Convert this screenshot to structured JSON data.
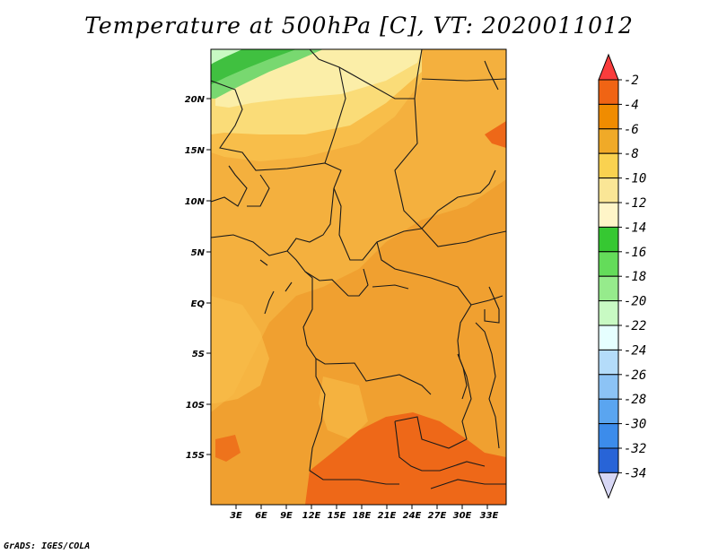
{
  "title": "Temperature at 500hPa [C], VT: 2020011012",
  "credit": "GrADS: IGES/COLA",
  "map": {
    "lon_labels": [
      "3E",
      "6E",
      "9E",
      "12E",
      "15E",
      "18E",
      "21E",
      "24E",
      "27E",
      "30E",
      "33E"
    ],
    "lat_labels": [
      "20N",
      "15N",
      "10N",
      "5N",
      "EQ",
      "5S",
      "10S",
      "15S"
    ]
  },
  "colorbar": {
    "labels": [
      "-2",
      "-4",
      "-6",
      "-8",
      "-10",
      "-12",
      "-14",
      "-16",
      "-18",
      "-20",
      "-22",
      "-24",
      "-26",
      "-28",
      "-30",
      "-32",
      "-34"
    ],
    "colors": [
      "#fa3c3c",
      "#f06414",
      "#f08c00",
      "#f0aa28",
      "#fad250",
      "#fae696",
      "#fff5c8",
      "#36c832",
      "#64dc5a",
      "#96eb8c",
      "#c8fac3",
      "#e6ffff",
      "#b4dcfa",
      "#8cc3f5",
      "#5aa5f0",
      "#3c8ceb",
      "#2864d7",
      "#1446b4",
      "#0a1e82",
      "#d7d7f5"
    ]
  },
  "palette": {
    "land": "#f0a030",
    "light_orange": "#f8be4a",
    "pale_yellow": "#fadc78",
    "cream": "#fbeea8",
    "red_orange": "#ee6818",
    "green": "#40c040",
    "light_green": "#78d870",
    "boundary": "#1a1a1a"
  }
}
